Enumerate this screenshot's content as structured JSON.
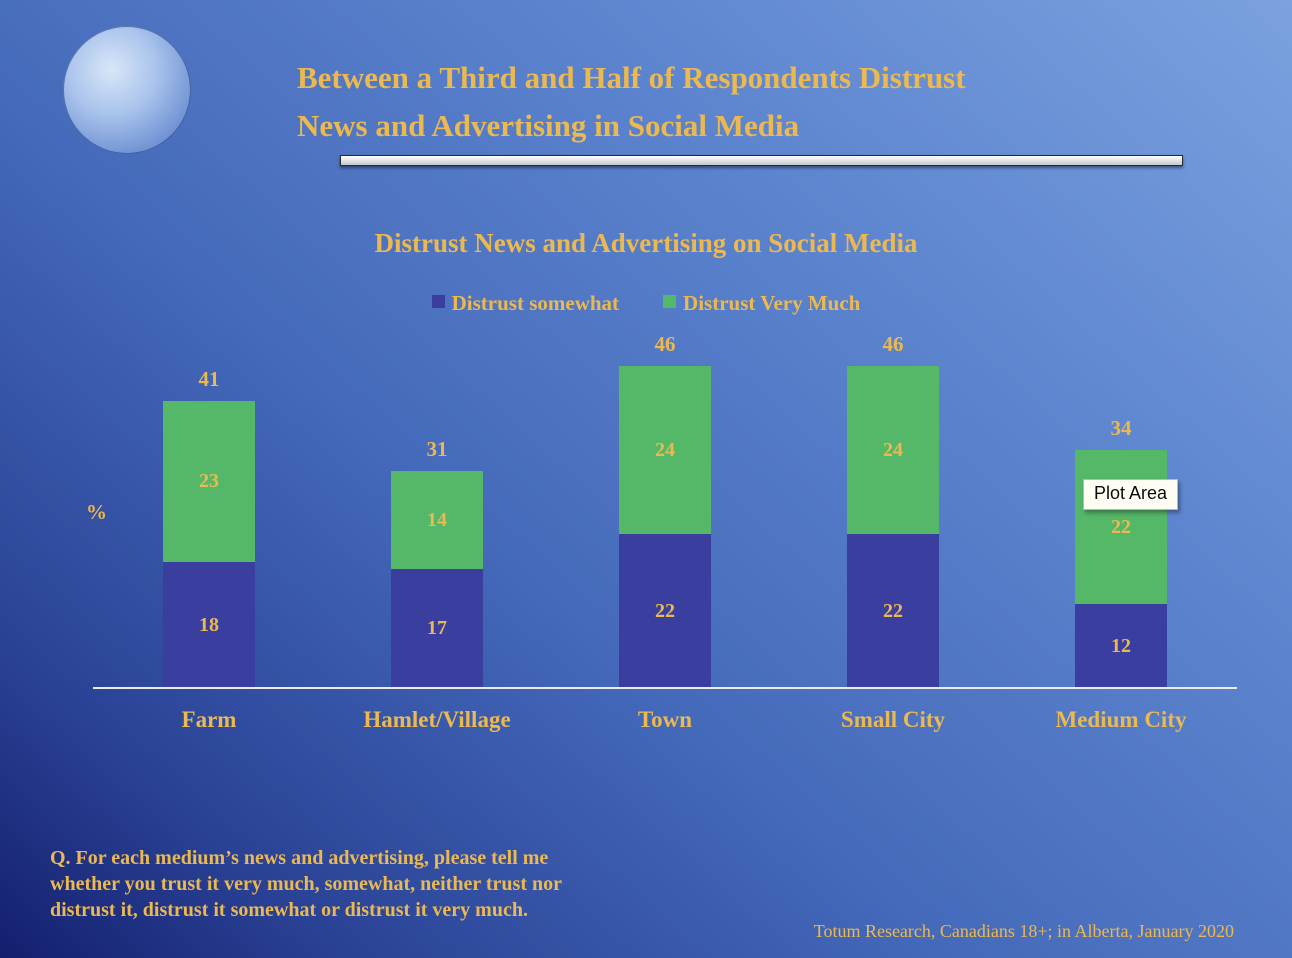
{
  "slide": {
    "title_lines": [
      "Between a Third and Half of Respondents Distrust",
      "News and Advertising in Social Media"
    ],
    "tooltip": "Plot Area",
    "question_lines": [
      "Q. For each medium’s news and advertising, please tell me",
      "whether you trust it very much, somewhat, neither trust nor",
      "distrust it, distrust it somewhat or distrust it very much."
    ],
    "source": "Totum Research, Canadians 18+; in Alberta, January 2020"
  },
  "chart_data": {
    "type": "bar",
    "stacked": true,
    "title": "Distrust News and Advertising on Social Media",
    "categories": [
      "Farm",
      "Hamlet/Village",
      "Town",
      "Small City",
      "Medium City"
    ],
    "series": [
      {
        "name": "Distrust somewhat",
        "color": "#3a3e9e",
        "values": [
          18,
          17,
          22,
          22,
          12
        ]
      },
      {
        "name": "Distrust Very Much",
        "color": "#55b869",
        "values": [
          23,
          14,
          24,
          24,
          22
        ]
      }
    ],
    "totals": [
      41,
      31,
      46,
      46,
      34
    ],
    "xlabel": "",
    "ylabel": "%",
    "ylim": [
      0,
      50
    ],
    "legend_position": "top",
    "value_labels": "inside",
    "colors": {
      "label_text": "#ecb950",
      "axis_line": "#eceae6",
      "background_top": "#7ba1de",
      "background_bottom": "#141f6e"
    }
  }
}
